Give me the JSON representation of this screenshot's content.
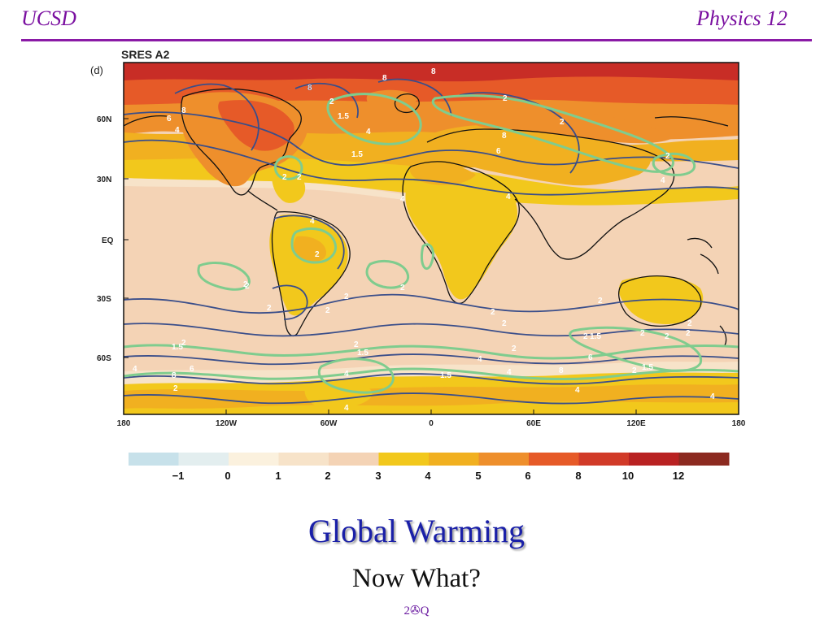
{
  "header": {
    "left": "UCSD",
    "right": "Physics 12"
  },
  "slide": {
    "title": "Global Warming",
    "subtitle": "Now What?",
    "page_number": "2✇Q"
  },
  "figure": {
    "scenario": "SRES A2",
    "panel_label": "(d)",
    "lat_ticks": [
      "60N",
      "30N",
      "EQ",
      "30S",
      "60S"
    ],
    "lon_ticks": [
      "180",
      "120W",
      "60W",
      "0",
      "60E",
      "120E",
      "180"
    ],
    "colorbar": {
      "ticks": [
        "−1",
        "0",
        "1",
        "2",
        "3",
        "4",
        "5",
        "6",
        "8",
        "10",
        "12"
      ],
      "colors": [
        "#c7e1ea",
        "#e3eeef",
        "#fbf1de",
        "#f7e3c9",
        "#f4d3b5",
        "#f2c81c",
        "#f1b020",
        "#ee8f2c",
        "#e65a28",
        "#d13a28",
        "#b92222",
        "#8c2a20"
      ]
    },
    "contour_labels_blue": [
      "8",
      "8",
      "8",
      "8",
      "6",
      "4",
      "8",
      "6",
      "4",
      "4",
      "4",
      "4",
      "4",
      "2",
      "2",
      "2",
      "2",
      "2",
      "2",
      "2",
      "2",
      "4",
      "6",
      "8",
      "8",
      "4",
      "4",
      "4",
      "4",
      "4",
      "4",
      "6",
      "2"
    ],
    "contour_labels_green": [
      "2",
      "1.5",
      "1.5",
      "2",
      "2",
      "2",
      "2",
      "2",
      "2",
      "2",
      "2",
      "1.5",
      "2",
      "1.5",
      "2",
      "1.5",
      "2",
      "2",
      "2",
      "1.5",
      "1.5",
      "2",
      "2",
      "2"
    ]
  }
}
